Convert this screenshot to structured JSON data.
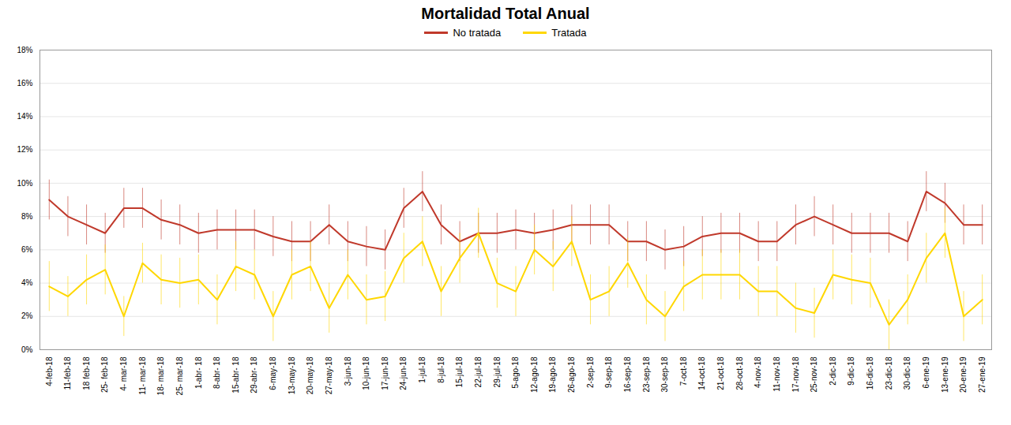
{
  "chart_data": {
    "type": "line",
    "title": "Mortalidad Total Anual",
    "categories": [
      "4-feb-18",
      "11-feb-18",
      "18 feb-18",
      "25- feb-18",
      "4- mar-18",
      "11- mar-18",
      "18- mar-18",
      "25- mar-18",
      "1-abr- 18",
      "8-abr- 18",
      "15-abr- 18",
      "29-abr- 18",
      "6-may-18",
      "13-may-18",
      "20-may-18",
      "27-may-18",
      "3-jun-18",
      "10-jun-18",
      "17-jun-18",
      "24-jun-18",
      "1-jul-18",
      "8-jul-18",
      "15-jul-18",
      "22-jul-18",
      "29-jul-18",
      "5-ago-18",
      "12-ago-18",
      "19-ago-18",
      "26-ago-18",
      "2-sep-18",
      "9-sep-18",
      "16-sep-18",
      "23-sep-18",
      "30-sep-18",
      "7-oct-18",
      "14-oct-18",
      "21-oct-18",
      "28-oct-18",
      "4-nov-18",
      "11-nov-18",
      "17-nov-18",
      "25-nov-18",
      "2-dic-18",
      "9-dic-18",
      "16-dic-18",
      "23-dic-18",
      "30-dic-18",
      "6-ene-19",
      "13-ene-19",
      "20-ene-19",
      "27-ene-19"
    ],
    "series": [
      {
        "name": "No tratada",
        "color": "#C0392B",
        "values": [
          9.0,
          8.0,
          7.5,
          7.0,
          8.5,
          8.5,
          7.8,
          7.5,
          7.0,
          7.2,
          7.2,
          7.2,
          6.8,
          6.5,
          6.5,
          7.5,
          6.5,
          6.2,
          6.0,
          8.5,
          9.5,
          7.5,
          6.5,
          7.0,
          7.0,
          7.2,
          7.0,
          7.2,
          7.5,
          7.5,
          7.5,
          6.5,
          6.5,
          6.0,
          6.2,
          6.8,
          7.0,
          7.0,
          6.5,
          6.5,
          7.5,
          8.0,
          7.5,
          7.0,
          7.0,
          7.0,
          6.5,
          9.5,
          8.8,
          7.5,
          7.5
        ],
        "errors": [
          1.2,
          1.2,
          1.2,
          1.2,
          1.2,
          1.2,
          1.2,
          1.2,
          1.2,
          1.2,
          1.2,
          1.2,
          1.2,
          1.2,
          1.2,
          1.2,
          1.2,
          1.2,
          1.2,
          1.2,
          1.2,
          1.2,
          1.2,
          1.2,
          1.2,
          1.2,
          1.2,
          1.2,
          1.2,
          1.2,
          1.2,
          1.2,
          1.2,
          1.2,
          1.2,
          1.2,
          1.2,
          1.2,
          1.2,
          1.2,
          1.2,
          1.2,
          1.2,
          1.2,
          1.2,
          1.2,
          1.2,
          1.2,
          1.2,
          1.2,
          1.2
        ]
      },
      {
        "name": "Tratada",
        "color": "#FFD700",
        "values": [
          3.8,
          3.2,
          4.2,
          4.8,
          2.0,
          5.2,
          4.2,
          4.0,
          4.2,
          3.0,
          5.0,
          4.5,
          2.0,
          4.5,
          5.0,
          2.5,
          4.5,
          3.0,
          3.2,
          5.5,
          6.5,
          3.5,
          5.5,
          7.0,
          4.0,
          3.5,
          6.0,
          5.0,
          6.5,
          3.0,
          3.5,
          5.2,
          3.0,
          2.0,
          3.8,
          4.5,
          4.5,
          4.5,
          3.5,
          3.5,
          2.5,
          2.2,
          4.5,
          4.2,
          4.0,
          1.5,
          3.0,
          5.5,
          7.0,
          2.0,
          3.0
        ],
        "errors": [
          1.5,
          1.2,
          1.5,
          1.5,
          1.2,
          1.2,
          1.5,
          1.5,
          1.5,
          1.5,
          1.5,
          1.5,
          1.5,
          1.5,
          1.5,
          1.5,
          1.5,
          1.5,
          1.5,
          1.5,
          1.5,
          1.5,
          1.5,
          1.5,
          1.5,
          1.5,
          1.5,
          1.5,
          1.5,
          1.5,
          1.5,
          1.5,
          1.5,
          1.5,
          1.5,
          1.5,
          1.5,
          1.5,
          1.5,
          1.5,
          1.5,
          1.5,
          1.5,
          1.5,
          1.5,
          1.5,
          1.5,
          1.5,
          1.5,
          1.5,
          1.5
        ]
      }
    ],
    "ylim": [
      0,
      18
    ],
    "yticks": [
      {
        "value": 0,
        "label": "0%"
      },
      {
        "value": 2,
        "label": "2%"
      },
      {
        "value": 4,
        "label": "4%"
      },
      {
        "value": 6,
        "label": "6%"
      },
      {
        "value": 8,
        "label": "8%"
      },
      {
        "value": 10,
        "label": "10%"
      },
      {
        "value": 12,
        "label": "12%"
      },
      {
        "value": 14,
        "label": "14%"
      },
      {
        "value": 16,
        "label": "16%"
      },
      {
        "value": 18,
        "label": "18%"
      }
    ],
    "grid": true,
    "legend": "top"
  }
}
